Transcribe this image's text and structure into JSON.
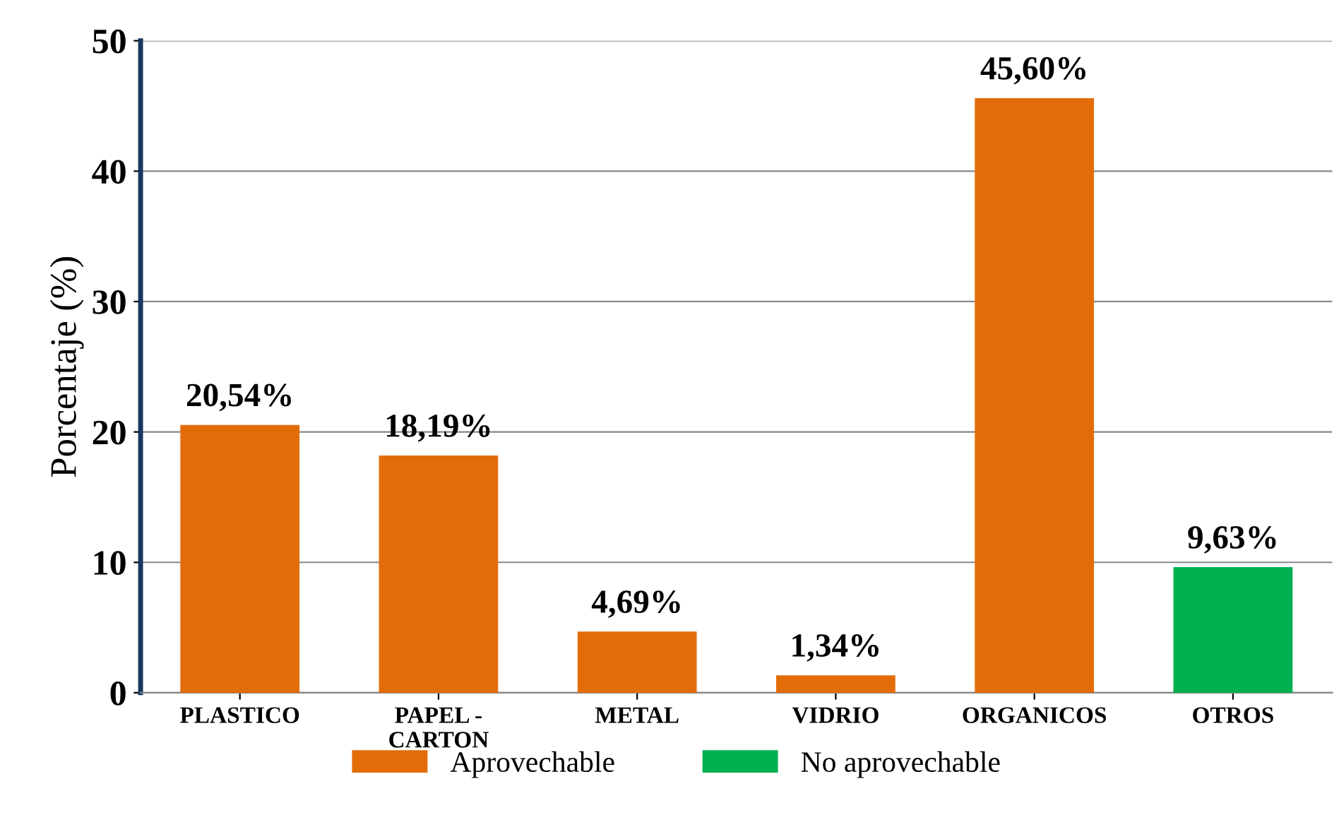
{
  "chart_data": {
    "type": "bar",
    "ylabel": "Porcentaje (%)",
    "categories": [
      "PLASTICO",
      "PAPEL -\nCARTON",
      "METAL",
      "VIDRIO",
      "ORGANICOS",
      "OTROS"
    ],
    "series": [
      {
        "name": "Aprovechable",
        "color": "#e36c0a",
        "values": [
          20.54,
          18.19,
          4.69,
          1.34,
          45.6,
          null
        ],
        "value_labels": [
          "20,54%",
          "18,19%",
          "4,69%",
          "1,34%",
          "45,60%",
          null
        ]
      },
      {
        "name": "No aprovechable",
        "color": "#00b050",
        "values": [
          null,
          null,
          null,
          null,
          null,
          9.63
        ],
        "value_labels": [
          null,
          null,
          null,
          null,
          null,
          "9,63%"
        ]
      }
    ],
    "ylim": [
      0,
      50
    ],
    "yticks": [
      0,
      10,
      20,
      30,
      40,
      50
    ],
    "grid": "y",
    "legend": "bottom"
  }
}
